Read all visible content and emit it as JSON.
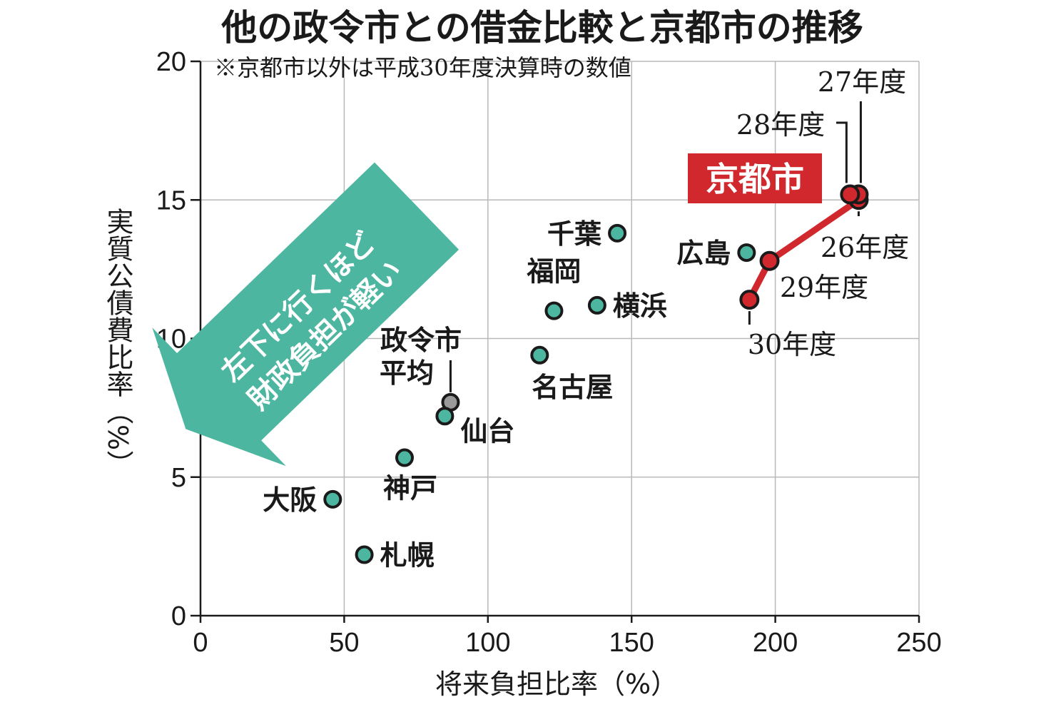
{
  "chart_data": {
    "type": "scatter",
    "title": "他の政令市との借金比較と京都市の推移",
    "subtitle": "※京都市以外は平成30年度決算時の数値",
    "xlabel": "将来負担比率（%）",
    "ylabel": "実質公債費比率（%）",
    "xlim": [
      0,
      250
    ],
    "ylim": [
      0,
      20
    ],
    "xticks": [
      0,
      50,
      100,
      150,
      200,
      250
    ],
    "yticks": [
      0,
      5,
      10,
      15,
      20
    ],
    "grid": true,
    "annotation": "左下に行くほど財政負担が軽い",
    "colors": {
      "cities": "#4db6a0",
      "average": "#9a9a9a",
      "kyoto": "#d1282e",
      "arrow": "#4db6a0"
    },
    "points": [
      {
        "name": "千葉",
        "x": 145,
        "y": 13.8
      },
      {
        "name": "広島",
        "x": 190,
        "y": 13.1
      },
      {
        "name": "福岡",
        "x": 123,
        "y": 11.0
      },
      {
        "name": "横浜",
        "x": 138,
        "y": 11.2
      },
      {
        "name": "名古屋",
        "x": 118,
        "y": 9.4
      },
      {
        "name": "政令市平均",
        "x": 87,
        "y": 7.7
      },
      {
        "name": "仙台",
        "x": 85,
        "y": 7.2
      },
      {
        "name": "神戸",
        "x": 71,
        "y": 5.7
      },
      {
        "name": "大阪",
        "x": 46,
        "y": 4.2
      },
      {
        "name": "札幌",
        "x": 57,
        "y": 2.2
      }
    ],
    "series": [
      {
        "name": "京都市",
        "points": [
          {
            "label": "26年度",
            "x": 229,
            "y": 15.0
          },
          {
            "label": "27年度",
            "x": 229,
            "y": 15.2
          },
          {
            "label": "28年度",
            "x": 226,
            "y": 15.2
          },
          {
            "label": "29年度",
            "x": 198,
            "y": 12.8
          },
          {
            "label": "30年度",
            "x": 191,
            "y": 11.4
          }
        ]
      }
    ]
  }
}
